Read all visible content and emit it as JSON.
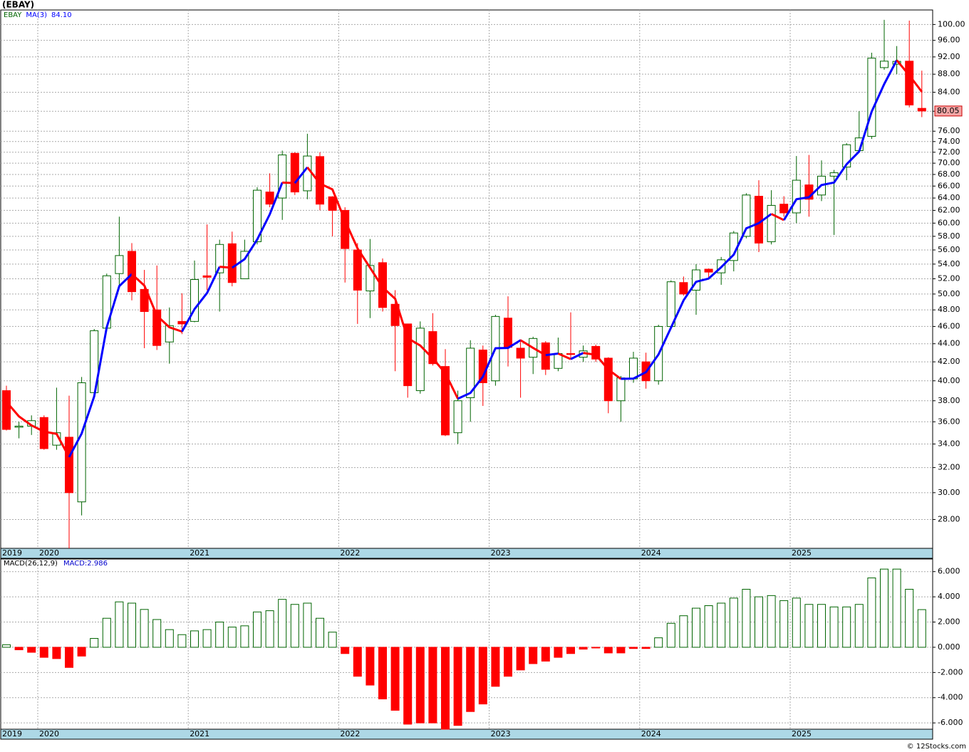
{
  "title": "(EBAY)",
  "footer": "© 12Stocks.com",
  "chart_data": [
    {
      "type": "candlestick",
      "symbol": "EBAY",
      "log": true,
      "grid": true,
      "up_color": "#006400",
      "down_color": "#ff0000",
      "categories": [
        "2019",
        null,
        null,
        "2020",
        null,
        null,
        null,
        null,
        null,
        null,
        null,
        null,
        null,
        null,
        null,
        "2021",
        null,
        null,
        null,
        null,
        null,
        null,
        null,
        null,
        null,
        null,
        null,
        "2022",
        null,
        null,
        null,
        null,
        null,
        null,
        null,
        null,
        null,
        null,
        null,
        "2023",
        null,
        null,
        null,
        null,
        null,
        null,
        null,
        null,
        null,
        null,
        null,
        "2024",
        null,
        null,
        null,
        null,
        null,
        null,
        null,
        null,
        null,
        null,
        null,
        "2025",
        null,
        null,
        null,
        null,
        null,
        null,
        null,
        null,
        null,
        null
      ],
      "open": [
        39.0,
        35.5,
        35.6,
        36.4,
        33.9,
        34.6,
        29.3,
        38.8,
        45.8,
        52.7,
        55.8,
        50.6,
        48.0,
        44.2,
        46.6,
        46.6,
        52.4,
        52.8,
        56.9,
        52.0,
        57.2,
        65.0,
        64.0,
        71.8,
        65.2,
        71.2,
        64.2,
        62.0,
        56.0,
        50.4,
        54.2,
        48.7,
        46.3,
        39.0,
        45.4,
        41.5,
        35.0,
        38.3,
        43.3,
        40.0,
        47.0,
        43.5,
        42.5,
        44.1,
        41.3,
        42.9,
        42.5,
        43.7,
        42.4,
        38.0,
        40.2,
        42.0,
        40.0,
        46.0,
        51.5,
        50.5,
        53.3,
        52.8,
        54.5,
        58.0,
        64.3,
        57.2,
        63.0,
        61.6,
        66.2,
        64.5,
        67.7,
        69.3,
        72.3,
        75.0,
        89.5,
        90.3,
        91.0,
        80.6
      ],
      "high": [
        39.5,
        36.0,
        36.6,
        36.6,
        39.3,
        38.5,
        40.4,
        45.7,
        52.7,
        61.0,
        57.0,
        53.2,
        53.8,
        48.3,
        50.1,
        54.5,
        59.8,
        57.5,
        58.7,
        57.5,
        65.8,
        68.2,
        72.3,
        72.0,
        75.5,
        72.0,
        64.3,
        62.5,
        57.0,
        57.6,
        54.8,
        50.5,
        46.3,
        46.6,
        47.6,
        43.4,
        39.0,
        44.4,
        43.8,
        47.4,
        49.7,
        44.5,
        44.8,
        44.3,
        44.7,
        47.7,
        43.8,
        43.9,
        42.5,
        40.5,
        43.1,
        43.0,
        46.2,
        51.8,
        52.3,
        54.0,
        53.4,
        55.0,
        58.8,
        64.8,
        67.0,
        65.3,
        64.3,
        71.3,
        71.5,
        70.5,
        68.8,
        73.7,
        80.0,
        93.0,
        101.2,
        94.6,
        101.0,
        88.8
      ],
      "low": [
        35.2,
        34.5,
        34.8,
        33.5,
        33.5,
        26.0,
        28.3,
        38.8,
        45.5,
        51.0,
        49.2,
        43.5,
        43.3,
        41.8,
        45.1,
        46.5,
        50.5,
        47.8,
        51.0,
        52.0,
        56.8,
        62.5,
        60.5,
        64.5,
        63.8,
        62.0,
        58.0,
        51.5,
        46.3,
        47.0,
        47.8,
        41.0,
        38.3,
        38.7,
        41.6,
        34.7,
        34.0,
        36.0,
        37.5,
        39.5,
        41.5,
        38.3,
        40.7,
        40.6,
        41.0,
        42.3,
        42.0,
        42.0,
        36.8,
        36.0,
        39.8,
        39.2,
        39.6,
        45.8,
        49.8,
        47.4,
        52.0,
        51.2,
        53.0,
        57.7,
        55.7,
        56.8,
        61.0,
        60.0,
        61.0,
        63.5,
        58.2,
        67.0,
        72.0,
        74.5,
        89.0,
        88.0,
        80.8,
        78.8
      ],
      "close": [
        35.3,
        35.6,
        36.1,
        33.6,
        35.0,
        30.0,
        39.8,
        45.5,
        52.4,
        55.2,
        50.3,
        47.8,
        43.8,
        46.1,
        46.3,
        51.9,
        52.2,
        56.8,
        51.5,
        55.8,
        65.3,
        63.0,
        71.5,
        65.0,
        71.3,
        63.0,
        62.0,
        56.2,
        50.5,
        53.8,
        48.3,
        46.1,
        39.5,
        45.8,
        41.8,
        34.8,
        38.0,
        43.5,
        39.8,
        47.2,
        43.6,
        42.4,
        44.6,
        41.2,
        42.9,
        42.8,
        43.2,
        42.3,
        38.0,
        40.3,
        42.4,
        40.0,
        46.0,
        51.6,
        50.0,
        53.2,
        52.9,
        54.6,
        58.5,
        64.5,
        57.0,
        62.8,
        61.6,
        67.0,
        63.8,
        67.7,
        68.3,
        73.4,
        74.7,
        91.7,
        91.0,
        90.95,
        81.3,
        80.05
      ],
      "ma": {
        "name": "MA(3)",
        "label": "84.10",
        "color": "#0000ff",
        "down_color": "#ff0000",
        "values": [
          37.9,
          36.5,
          35.67,
          35.1,
          34.9,
          32.87,
          34.93,
          38.43,
          45.9,
          51.03,
          52.63,
          51.1,
          47.3,
          45.9,
          45.4,
          48.1,
          50.13,
          53.63,
          53.5,
          54.7,
          57.53,
          61.37,
          66.6,
          66.5,
          69.27,
          66.43,
          65.43,
          60.4,
          56.23,
          53.5,
          50.87,
          49.4,
          44.63,
          43.8,
          42.37,
          40.8,
          38.2,
          38.77,
          40.43,
          43.5,
          43.53,
          44.4,
          43.53,
          42.73,
          42.9,
          42.3,
          42.97,
          42.77,
          41.17,
          40.2,
          40.23,
          40.9,
          42.8,
          45.87,
          49.2,
          51.6,
          52.03,
          53.57,
          55.33,
          59.2,
          60.0,
          61.43,
          60.47,
          63.8,
          64.13,
          66.17,
          66.6,
          69.8,
          72.13,
          79.93,
          85.8,
          91.22,
          87.75,
          84.1
        ]
      },
      "ylim": [
        26.0,
        103.8
      ],
      "yticks": [
        {
          "value": 28,
          "label": "28.00"
        },
        {
          "value": 30,
          "label": "30.00"
        },
        {
          "value": 32,
          "label": "32.00"
        },
        {
          "value": 34,
          "label": "34.00"
        },
        {
          "value": 36,
          "label": "36.00"
        },
        {
          "value": 38,
          "label": "38.00"
        },
        {
          "value": 40,
          "label": "40.00"
        },
        {
          "value": 42,
          "label": "42.00"
        },
        {
          "value": 44,
          "label": "44.00"
        },
        {
          "value": 46,
          "label": "46.00"
        },
        {
          "value": 48,
          "label": "48.00"
        },
        {
          "value": 50,
          "label": "50.00"
        },
        {
          "value": 52,
          "label": "52.00"
        },
        {
          "value": 54,
          "label": "54.00"
        },
        {
          "value": 56,
          "label": "56.00"
        },
        {
          "value": 58,
          "label": "58.00"
        },
        {
          "value": 60,
          "label": "60.00"
        },
        {
          "value": 62,
          "label": "62.00"
        },
        {
          "value": 64,
          "label": "64.00"
        },
        {
          "value": 66,
          "label": "66.00"
        },
        {
          "value": 68,
          "label": "68.00"
        },
        {
          "value": 70,
          "label": "70.00"
        },
        {
          "value": 72,
          "label": "72.00"
        },
        {
          "value": 74,
          "label": "74.00"
        },
        {
          "value": 76,
          "label": "76.00"
        },
        {
          "value": 80,
          "label": "80.00"
        },
        {
          "value": 84,
          "label": "84.00"
        },
        {
          "value": 88,
          "label": "88.00"
        },
        {
          "value": 92,
          "label": "92.00"
        },
        {
          "value": 96,
          "label": "96.00"
        },
        {
          "value": 100,
          "label": "100.00"
        }
      ],
      "last_color": "#f4a6a6"
    },
    {
      "type": "bar",
      "name": "MACD(26,12,9)",
      "current_label": "MACD:2.986",
      "grid": true,
      "up_color": "#006400",
      "down_color": "#ff0000",
      "label_color": "#0000cc",
      "values": [
        0.2,
        -0.2,
        -0.4,
        -0.8,
        -0.9,
        -1.6,
        -0.7,
        0.7,
        2.3,
        3.6,
        3.5,
        3.0,
        2.2,
        1.4,
        1.0,
        1.3,
        1.4,
        2.0,
        1.6,
        1.7,
        2.8,
        2.9,
        3.8,
        3.4,
        3.5,
        2.3,
        1.2,
        -0.5,
        -2.3,
        -3.0,
        -4.1,
        -5.0,
        -6.1,
        -6.0,
        -6.0,
        -6.5,
        -6.2,
        -5.1,
        -4.5,
        -3.1,
        -2.3,
        -1.8,
        -1.3,
        -1.1,
        -0.8,
        -0.5,
        -0.15,
        -0.05,
        -0.45,
        -0.45,
        -0.1,
        -0.1,
        0.75,
        1.9,
        2.5,
        3.1,
        3.3,
        3.5,
        3.9,
        4.6,
        4.0,
        4.1,
        3.7,
        3.9,
        3.4,
        3.4,
        3.2,
        3.2,
        3.4,
        5.5,
        6.2,
        6.2,
        4.6,
        2.986
      ],
      "ylim": [
        -6.5,
        7.0
      ],
      "yticks": [
        {
          "value": -6,
          "label": "-6.000"
        },
        {
          "value": -4,
          "label": "-4.000"
        },
        {
          "value": -2,
          "label": "-2.000"
        },
        {
          "value": 0,
          "label": "0.000"
        },
        {
          "value": 2,
          "label": "2.000"
        },
        {
          "value": 4,
          "label": "4.000"
        },
        {
          "value": 6,
          "label": "6.000"
        }
      ]
    }
  ]
}
